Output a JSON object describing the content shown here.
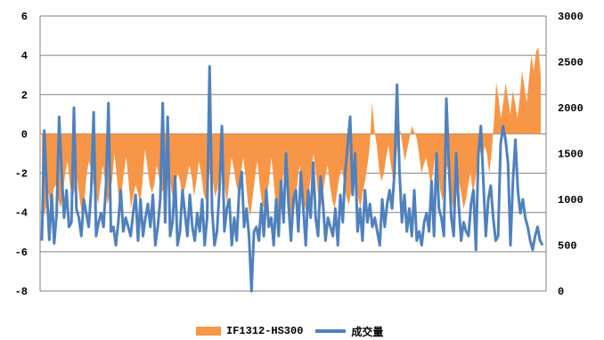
{
  "chart_data": {
    "type": "area",
    "title": "",
    "grid": true,
    "legend_placement": "bottom",
    "colors": {
      "area": "#F79646",
      "line": "#4F81BD",
      "grid": "#808080"
    },
    "left_axis": {
      "min": -8,
      "max": 6,
      "ticks": [
        "6",
        "4",
        "2",
        "0",
        "-2",
        "-4",
        "-6",
        "-8"
      ]
    },
    "right_axis": {
      "min": 0,
      "max": 3000,
      "ticks": [
        "3000",
        "2500",
        "2000",
        "1500",
        "1000",
        "500",
        "0"
      ]
    },
    "series": [
      {
        "name": "IF1312-HS300",
        "type": "area",
        "axis": "left",
        "values": [
          -3.0,
          -4.2,
          -3.6,
          -3.0,
          -4.4,
          -2.8,
          -2.6,
          -3.3,
          -3.8,
          -3.0,
          -2.0,
          -1.4,
          -2.6,
          -3.4,
          -2.8,
          -2.2,
          -3.2,
          -4.0,
          -3.6,
          -2.2,
          -1.4,
          -1.8,
          -2.6,
          -3.0,
          -3.6,
          -2.6,
          -1.6,
          -2.4,
          -3.6,
          -3.0,
          -2.4,
          -1.0,
          -2.2,
          -3.6,
          -3.0,
          -2.0,
          -1.2,
          -2.4,
          -3.8,
          -3.2,
          -2.6,
          -3.0,
          -3.6,
          -2.4,
          -0.8,
          -1.6,
          -2.6,
          -3.0,
          -2.6,
          -1.6,
          -2.2,
          -3.0,
          -2.8,
          -2.0,
          -1.8,
          -2.6,
          -3.4,
          -2.6,
          -2.0,
          -2.4,
          -3.2,
          -2.8,
          -2.2,
          -1.6,
          -2.2,
          -3.2,
          -2.4,
          -1.4,
          -2.0,
          -3.0,
          -3.4,
          -2.6,
          -1.6,
          -2.4,
          -3.2,
          -2.8,
          -1.8,
          -1.2,
          -2.6,
          -3.6,
          -2.4,
          -1.2,
          -1.8,
          -2.6,
          -3.0,
          -2.0,
          -1.2,
          -2.2,
          -3.6,
          -4.2,
          -3.2,
          -2.2,
          -1.4,
          -2.6,
          -3.6,
          -3.8,
          -3.2,
          -2.4,
          -1.2,
          -2.4,
          -3.8,
          -4.4,
          -3.4,
          -2.2,
          -1.4,
          -2.8,
          -4.0,
          -4.6,
          -3.6,
          -2.6,
          -1.6,
          -2.6,
          -3.6,
          -4.0,
          -3.0,
          -2.0,
          -1.0,
          -2.0,
          -3.2,
          -3.8,
          -3.0,
          -2.2,
          -1.6,
          -2.6,
          -3.4,
          -3.8,
          -3.0,
          -2.2,
          -1.8,
          -2.4,
          -3.2,
          -3.6,
          -3.0,
          -2.6,
          -2.4,
          -3.2,
          -3.8,
          -3.0,
          -2.4,
          -1.6,
          -0.6,
          1.6,
          0.2,
          -0.6,
          -1.8,
          -2.4,
          -2.0,
          -1.2,
          -0.6,
          -1.6,
          -2.4,
          -1.6,
          -0.4,
          0.2,
          -0.6,
          -1.4,
          -0.8,
          -0.2,
          0.4,
          0.1,
          -0.2,
          -1.0,
          -2.0,
          -1.6,
          -1.2,
          -1.8,
          -2.6,
          -2.0,
          -1.0,
          -1.6,
          -2.8,
          -3.4,
          -2.6,
          -1.6,
          -2.4,
          -3.4,
          -4.0,
          -3.2,
          -2.4,
          -3.0,
          -3.8,
          -3.4,
          -2.6,
          -2.0,
          -3.0,
          -2.4,
          -1.6,
          -0.8,
          -1.4,
          -0.6,
          -1.0,
          -2.0,
          -1.0,
          0.6,
          2.6,
          1.8,
          0.8,
          1.6,
          2.6,
          1.8,
          1.0,
          2.2,
          1.6,
          0.8,
          1.8,
          3.2,
          2.4,
          1.6,
          2.8,
          4.0,
          3.2,
          4.2,
          4.4,
          3.0
        ]
      },
      {
        "name": "成交量",
        "type": "line",
        "axis": "right",
        "values": [
          550,
          1750,
          1100,
          560,
          1050,
          520,
          850,
          1900,
          1300,
          800,
          1100,
          700,
          750,
          2000,
          900,
          800,
          600,
          1000,
          850,
          700,
          1100,
          1950,
          600,
          750,
          850,
          700,
          1150,
          2050,
          650,
          700,
          500,
          750,
          1100,
          650,
          800,
          700,
          600,
          850,
          1050,
          550,
          1000,
          600,
          800,
          950,
          700,
          1050,
          500,
          700,
          1000,
          2050,
          750,
          1900,
          600,
          750,
          1250,
          500,
          650,
          1100,
          850,
          600,
          1050,
          700,
          550,
          850,
          650,
          1000,
          500,
          800,
          2450,
          900,
          500,
          650,
          1100,
          1800,
          650,
          900,
          1000,
          500,
          800,
          550,
          1100,
          1300,
          700,
          900,
          600,
          0,
          650,
          700,
          550,
          950,
          600,
          1100,
          700,
          800,
          500,
          1000,
          600,
          1200,
          750,
          1500,
          950,
          550,
          1000,
          1100,
          650,
          1300,
          900,
          500,
          1100,
          800,
          1400,
          800,
          600,
          1250,
          950,
          550,
          800,
          700,
          600,
          900,
          500,
          1050,
          750,
          1300,
          1600,
          1900,
          1050,
          1500,
          650,
          900,
          550,
          1100,
          750,
          950,
          700,
          800,
          650,
          500,
          1000,
          700,
          950,
          1100,
          900,
          1300,
          2250,
          1300,
          750,
          1050,
          650,
          900,
          600,
          1100,
          550,
          650,
          500,
          750,
          850,
          650,
          1200,
          600,
          1500,
          900,
          800,
          600,
          2100,
          1400,
          800,
          600,
          1500,
          950,
          550,
          750,
          650,
          600,
          950,
          1100,
          450,
          1500,
          1800,
          1200,
          600,
          1000,
          1150,
          800,
          550,
          600,
          1600,
          1800,
          1650,
          1400,
          500,
          1200,
          1650,
          1100,
          850,
          1000,
          800,
          700,
          550,
          450,
          600,
          700,
          550,
          500
        ]
      }
    ]
  }
}
